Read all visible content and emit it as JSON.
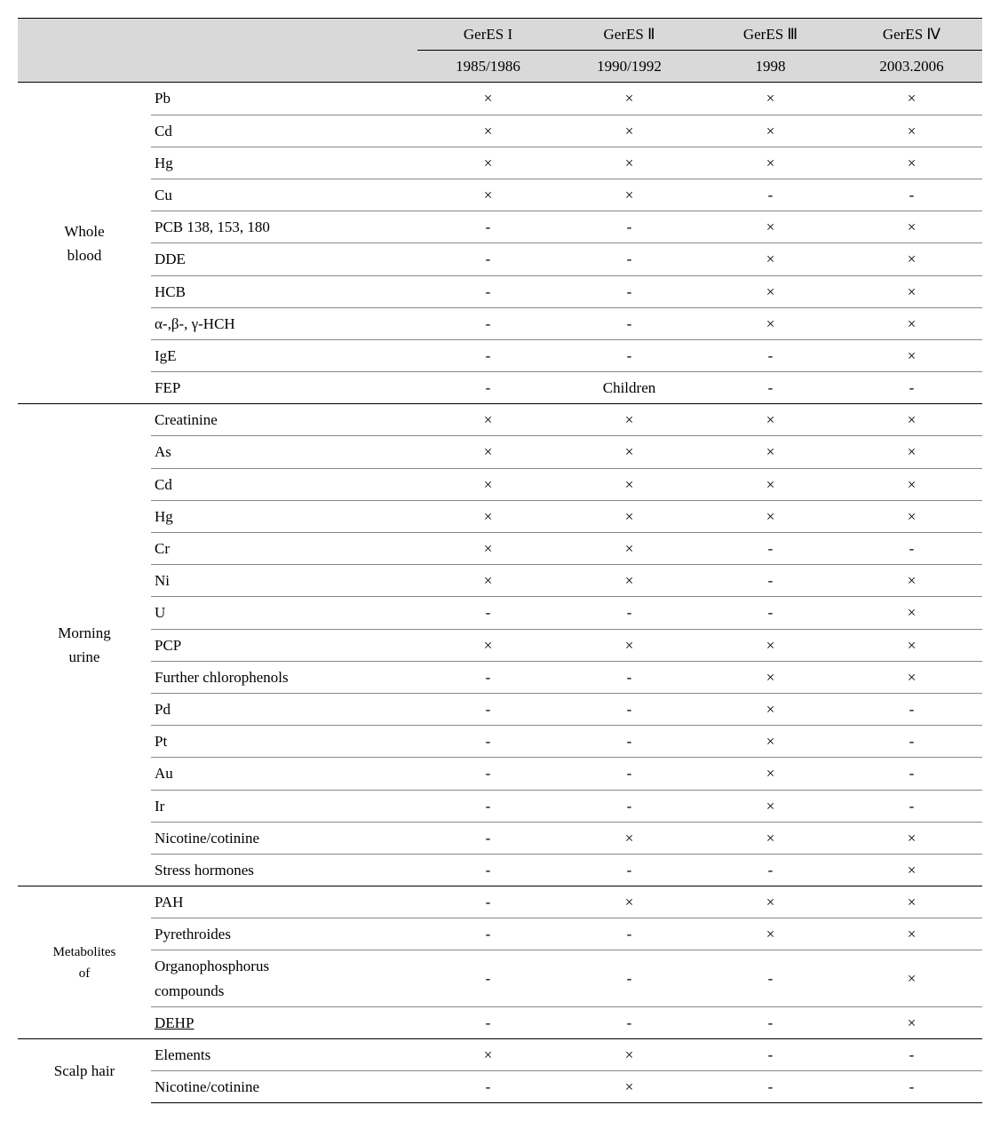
{
  "header": {
    "cols": [
      {
        "l1": "GerES I",
        "l2": "1985/1986"
      },
      {
        "l1": "GerES Ⅱ",
        "l2": "1990/1992"
      },
      {
        "l1": "GerES Ⅲ",
        "l2": "1998"
      },
      {
        "l1": "GerES Ⅳ",
        "l2": "2003.2006"
      }
    ]
  },
  "sections": [
    {
      "label": "Whole\nblood",
      "smallLabel": false,
      "topBorder": true,
      "rows": [
        {
          "name": "Pb",
          "v": [
            "×",
            "×",
            "×",
            "×"
          ]
        },
        {
          "name": "Cd",
          "v": [
            "×",
            "×",
            "×",
            "×"
          ]
        },
        {
          "name": "Hg",
          "v": [
            "×",
            "×",
            "×",
            "×"
          ]
        },
        {
          "name": "Cu",
          "v": [
            "×",
            "×",
            "-",
            "-"
          ]
        },
        {
          "name": "PCB 138, 153, 180",
          "v": [
            "-",
            "-",
            "×",
            "×"
          ]
        },
        {
          "name": "DDE",
          "v": [
            "-",
            "-",
            "×",
            "×"
          ]
        },
        {
          "name": "HCB",
          "v": [
            "-",
            "-",
            "×",
            "×"
          ]
        },
        {
          "name": "α-,β-, γ-HCH",
          "v": [
            "-",
            "-",
            "×",
            "×"
          ]
        },
        {
          "name": "IgE",
          "v": [
            "-",
            "-",
            "-",
            "×"
          ]
        },
        {
          "name": "FEP",
          "v": [
            "-",
            "Children",
            "-",
            "-"
          ],
          "lastInSection": true
        }
      ]
    },
    {
      "label": "Morning\nurine",
      "smallLabel": false,
      "topBorder": true,
      "rows": [
        {
          "name": "Creatinine",
          "v": [
            "×",
            "×",
            "×",
            "×"
          ]
        },
        {
          "name": "As",
          "v": [
            "×",
            "×",
            "×",
            "×"
          ]
        },
        {
          "name": "Cd",
          "v": [
            "×",
            "×",
            "×",
            "×"
          ]
        },
        {
          "name": "Hg",
          "v": [
            "×",
            "×",
            "×",
            "×"
          ]
        },
        {
          "name": "Cr",
          "v": [
            "×",
            "×",
            "-",
            "-"
          ]
        },
        {
          "name": "Ni",
          "v": [
            "×",
            "×",
            "-",
            "×"
          ]
        },
        {
          "name": "U",
          "v": [
            "-",
            "-",
            "-",
            "×"
          ]
        },
        {
          "name": "PCP",
          "v": [
            "×",
            "×",
            "×",
            "×"
          ]
        },
        {
          "name": "Further chlorophenols",
          "v": [
            "-",
            "-",
            "×",
            "×"
          ]
        },
        {
          "name": "Pd",
          "v": [
            "-",
            "-",
            "×",
            "-"
          ]
        },
        {
          "name": "Pt",
          "v": [
            "-",
            "-",
            "×",
            "-"
          ]
        },
        {
          "name": "Au",
          "v": [
            "-",
            "-",
            "×",
            "-"
          ]
        },
        {
          "name": "Ir",
          "v": [
            "-",
            "-",
            "×",
            "-"
          ]
        },
        {
          "name": "Nicotine/cotinine",
          "v": [
            "-",
            "×",
            "×",
            "×"
          ]
        },
        {
          "name": "Stress hormones",
          "v": [
            "-",
            "-",
            "-",
            "×"
          ],
          "lastInSection": true
        }
      ]
    },
    {
      "label": "Metabolites\nof",
      "smallLabel": true,
      "topBorder": true,
      "rows": [
        {
          "name": "PAH",
          "v": [
            "-",
            "×",
            "×",
            "×"
          ]
        },
        {
          "name": "Pyrethroides",
          "v": [
            "-",
            "-",
            "×",
            "×"
          ]
        },
        {
          "name": "Organophosphorus\ncompounds",
          "v": [
            "-",
            "-",
            "-",
            "×"
          ]
        },
        {
          "name": "DEHP",
          "underline": true,
          "v": [
            "-",
            "-",
            "-",
            "×"
          ],
          "lastInSection": true
        }
      ]
    },
    {
      "label": "Scalp hair",
      "smallLabel": false,
      "topBorder": true,
      "rows": [
        {
          "name": "Elements",
          "v": [
            "×",
            "×",
            "-",
            "-"
          ]
        },
        {
          "name": "Nicotine/cotinine",
          "v": [
            "-",
            "×",
            "-",
            "-"
          ],
          "lastInSection": true,
          "bottomRule": true
        }
      ]
    }
  ]
}
